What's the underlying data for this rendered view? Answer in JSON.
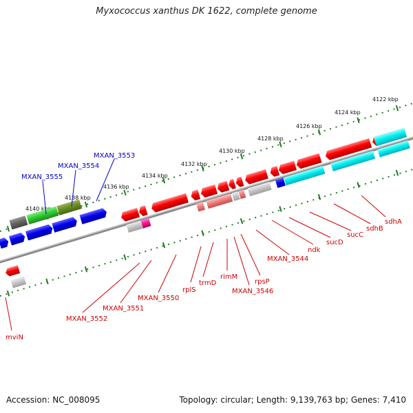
{
  "title": "Myxococcus xanthus DK 1622, complete genome",
  "footer": {
    "accession": "Accession: NC_008095",
    "meta": "Topology: circular; Length: 9,139,763 bp; Genes: 7,410"
  },
  "colors": {
    "background": "#ffffff",
    "backbone": "#8a8a8a",
    "scale_ticks": "#1f7a1f",
    "label_red": "#cc0000",
    "label_blue": "#0000cc"
  },
  "scale": {
    "unit": "kbp",
    "labels": [
      "4122 kbp",
      "4124 kbp",
      "4126 kbp",
      "4128 kbp",
      "4130 kbp",
      "4132 kbp",
      "4134 kbp",
      "4136 kbp",
      "4138 kbp",
      "4140 kbp"
    ]
  },
  "blue_labels": [
    "MXAN_3555",
    "MXAN_3554",
    "MXAN_3553"
  ],
  "red_labels": [
    "mviN",
    "MXAN_3552",
    "MXAN_3551",
    "MXAN_3550",
    "rplS",
    "trmD",
    "rimM",
    "MXAN_3546",
    "rpsP",
    "MXAN_3544",
    "ndk",
    "sucD",
    "sucC",
    "sdhB",
    "sdhA"
  ],
  "gene_colors": [
    "red",
    "blue",
    "cyan",
    "green",
    "olive",
    "dark-gray",
    "light-gray",
    "magenta",
    "pink"
  ]
}
